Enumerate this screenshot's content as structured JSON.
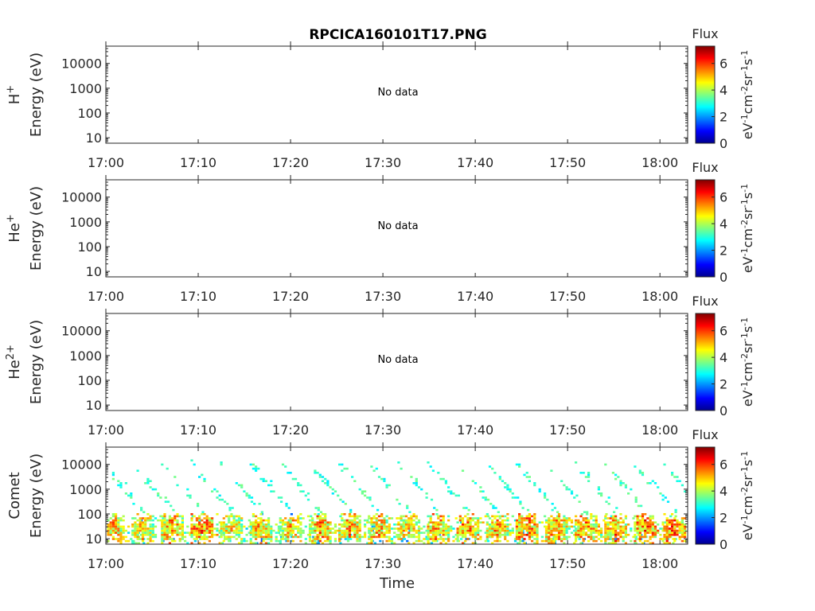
{
  "title": "RPCICA160101T17.PNG",
  "xlabel": "Time",
  "colorbar": {
    "title": "Flux",
    "label_base": "eV",
    "ticks": [
      "0",
      "2",
      "4",
      "6"
    ],
    "range": [
      0,
      7.3
    ]
  },
  "chart_data": [
    {
      "type": "heatmap",
      "panel": "H+",
      "ylabel_species": "H",
      "ylabel_charge": "+",
      "ylabel": "Energy (eV)",
      "xticks": [
        "17:00",
        "17:10",
        "17:20",
        "17:30",
        "17:40",
        "17:50",
        "18:00"
      ],
      "yticks": [
        "10",
        "100",
        "1000",
        "10000"
      ],
      "xlim_minutes": [
        0,
        63
      ],
      "ylim_eV": [
        6,
        50000
      ],
      "yscale": "log",
      "message": "No data"
    },
    {
      "type": "heatmap",
      "panel": "He+",
      "ylabel_species": "He",
      "ylabel_charge": "+",
      "ylabel": "Energy (eV)",
      "xticks": [
        "17:00",
        "17:10",
        "17:20",
        "17:30",
        "17:40",
        "17:50",
        "18:00"
      ],
      "yticks": [
        "10",
        "100",
        "1000",
        "10000"
      ],
      "xlim_minutes": [
        0,
        63
      ],
      "ylim_eV": [
        6,
        50000
      ],
      "yscale": "log",
      "message": "No data"
    },
    {
      "type": "heatmap",
      "panel": "He2+",
      "ylabel_species": "He",
      "ylabel_charge": "2+",
      "ylabel": "Energy (eV)",
      "xticks": [
        "17:00",
        "17:10",
        "17:20",
        "17:30",
        "17:40",
        "17:50",
        "18:00"
      ],
      "yticks": [
        "10",
        "100",
        "1000",
        "10000"
      ],
      "xlim_minutes": [
        0,
        63
      ],
      "ylim_eV": [
        6,
        50000
      ],
      "yscale": "log",
      "message": "No data"
    },
    {
      "type": "heatmap",
      "panel": "Comet",
      "ylabel_species": "Comet",
      "ylabel_charge": "",
      "ylabel": "Energy (eV)",
      "xticks": [
        "17:00",
        "17:10",
        "17:20",
        "17:30",
        "17:40",
        "17:50",
        "18:00"
      ],
      "yticks": [
        "10",
        "100",
        "1000",
        "10000"
      ],
      "xlim_minutes": [
        0,
        63
      ],
      "ylim_eV": [
        6,
        50000
      ],
      "yscale": "log",
      "sweep_period_minutes": 3.2,
      "sweeps": [
        {
          "t_min": 0.6,
          "peak_flux": 6.2
        },
        {
          "t_min": 3.8,
          "peak_flux": 6.0
        },
        {
          "t_min": 7.0,
          "peak_flux": 6.3
        },
        {
          "t_min": 10.2,
          "peak_flux": 6.8
        },
        {
          "t_min": 13.4,
          "peak_flux": 5.9
        },
        {
          "t_min": 16.6,
          "peak_flux": 6.2
        },
        {
          "t_min": 19.8,
          "peak_flux": 6.1
        },
        {
          "t_min": 23.0,
          "peak_flux": 6.5
        },
        {
          "t_min": 26.2,
          "peak_flux": 6.3
        },
        {
          "t_min": 29.4,
          "peak_flux": 6.2
        },
        {
          "t_min": 32.6,
          "peak_flux": 6.1
        },
        {
          "t_min": 35.8,
          "peak_flux": 6.4
        },
        {
          "t_min": 39.0,
          "peak_flux": 6.6
        },
        {
          "t_min": 42.2,
          "peak_flux": 6.3
        },
        {
          "t_min": 45.4,
          "peak_flux": 6.7
        },
        {
          "t_min": 48.6,
          "peak_flux": 6.4
        },
        {
          "t_min": 51.8,
          "peak_flux": 6.5
        },
        {
          "t_min": 55.0,
          "peak_flux": 6.6
        },
        {
          "t_min": 58.2,
          "peak_flux": 6.9
        },
        {
          "t_min": 61.4,
          "peak_flux": 6.9
        }
      ]
    }
  ]
}
